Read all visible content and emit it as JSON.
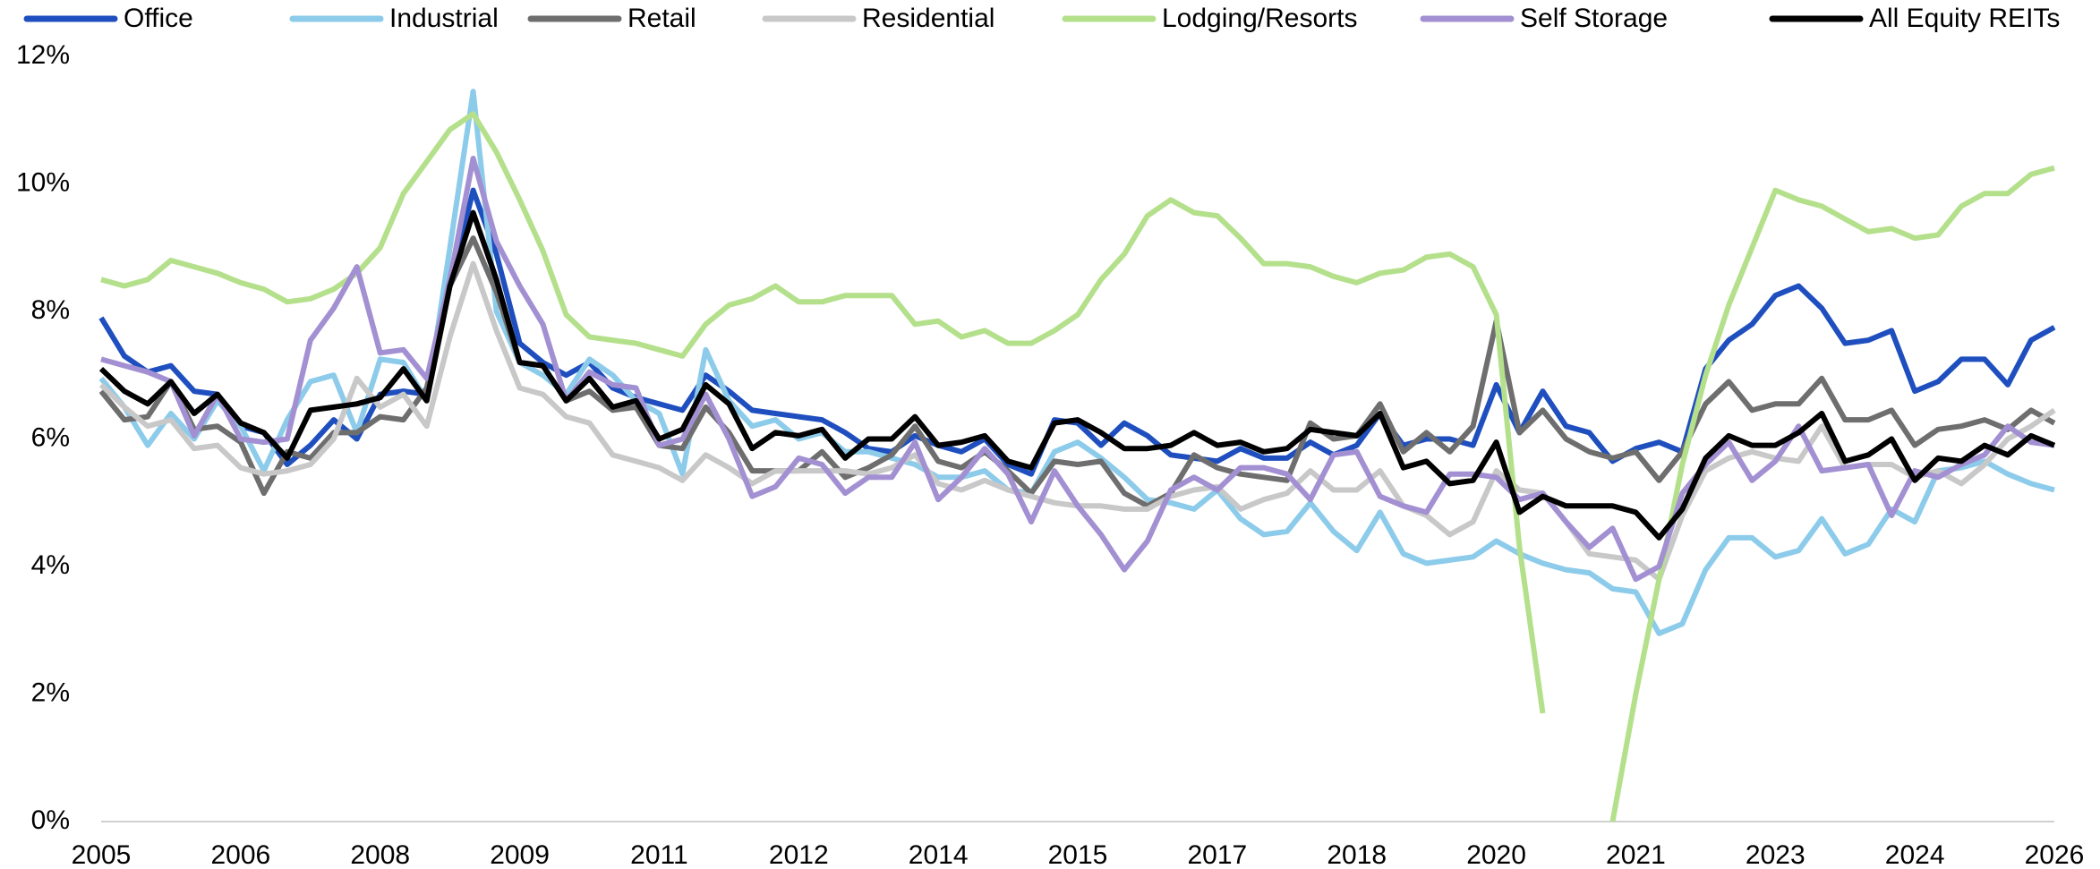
{
  "chart_data": {
    "type": "line",
    "x": [
      2005,
      2005.25,
      2005.5,
      2005.75,
      2006,
      2006.25,
      2006.5,
      2006.75,
      2007,
      2007.25,
      2007.5,
      2007.75,
      2008,
      2008.25,
      2008.5,
      2008.75,
      2009,
      2009.25,
      2009.5,
      2009.75,
      2010,
      2010.25,
      2010.5,
      2010.75,
      2011,
      2011.25,
      2011.5,
      2011.75,
      2012,
      2012.25,
      2012.5,
      2012.75,
      2013,
      2013.25,
      2013.5,
      2013.75,
      2014,
      2014.25,
      2014.5,
      2014.75,
      2015,
      2015.25,
      2015.5,
      2015.75,
      2016,
      2016.25,
      2016.5,
      2016.75,
      2017,
      2017.25,
      2017.5,
      2017.75,
      2018,
      2018.25,
      2018.5,
      2018.75,
      2019,
      2019.25,
      2019.5,
      2019.75,
      2020,
      2020.25,
      2020.5,
      2020.75,
      2021,
      2021.25,
      2021.5,
      2021.75,
      2022,
      2022.25,
      2022.5,
      2022.75,
      2023,
      2023.25,
      2023.5,
      2023.75,
      2024,
      2024.25,
      2024.5,
      2024.75,
      2025,
      2025.25,
      2025.5,
      2025.75,
      2026
    ],
    "series": [
      {
        "name": "Office",
        "color": "#1f4fbf",
        "values": [
          7.9,
          7.3,
          7.05,
          7.15,
          6.75,
          6.7,
          6.2,
          6.1,
          5.6,
          5.9,
          6.3,
          6.0,
          6.7,
          6.75,
          6.7,
          8.4,
          9.9,
          8.9,
          7.5,
          7.2,
          7.0,
          7.2,
          6.8,
          6.65,
          6.55,
          6.45,
          7.0,
          6.75,
          6.45,
          6.4,
          6.35,
          6.3,
          6.1,
          5.85,
          5.8,
          6.05,
          5.9,
          5.8,
          6.0,
          5.6,
          5.45,
          6.3,
          6.25,
          5.9,
          6.25,
          6.05,
          5.75,
          5.7,
          5.65,
          5.85,
          5.7,
          5.7,
          5.95,
          5.75,
          5.9,
          6.4,
          5.9,
          6.0,
          6.0,
          5.9,
          6.85,
          6.1,
          6.75,
          6.2,
          6.1,
          5.65,
          5.85,
          5.95,
          5.8,
          7.1,
          7.55,
          7.8,
          8.25,
          8.4,
          8.05,
          7.5,
          7.55,
          7.7,
          6.75,
          6.9,
          7.25,
          7.25,
          6.85,
          7.55,
          7.75
        ]
      },
      {
        "name": "Industrial",
        "color": "#8ccbea",
        "values": [
          6.95,
          6.5,
          5.9,
          6.4,
          6.0,
          6.6,
          6.2,
          5.5,
          6.3,
          6.9,
          7.0,
          6.1,
          7.25,
          7.2,
          6.6,
          9.0,
          11.45,
          8.0,
          7.2,
          7.0,
          6.7,
          7.25,
          7.0,
          6.6,
          6.4,
          5.45,
          7.4,
          6.6,
          6.2,
          6.3,
          6.0,
          6.1,
          5.8,
          5.8,
          5.7,
          5.6,
          5.4,
          5.4,
          5.5,
          5.2,
          5.15,
          5.8,
          5.95,
          5.7,
          5.4,
          5.05,
          5.0,
          4.9,
          5.2,
          4.75,
          4.5,
          4.55,
          5.0,
          4.55,
          4.25,
          4.85,
          4.2,
          4.05,
          4.1,
          4.15,
          4.4,
          4.2,
          4.05,
          3.95,
          3.9,
          3.65,
          3.6,
          2.95,
          3.1,
          3.95,
          4.45,
          4.45,
          4.15,
          4.25,
          4.75,
          4.2,
          4.35,
          4.9,
          4.7,
          5.5,
          5.55,
          5.65,
          5.45,
          5.3,
          5.2
        ]
      },
      {
        "name": "Retail",
        "color": "#6e6e6e",
        "values": [
          6.75,
          6.3,
          6.35,
          6.9,
          6.15,
          6.2,
          5.95,
          5.15,
          5.8,
          5.7,
          6.1,
          6.1,
          6.35,
          6.3,
          6.8,
          8.4,
          9.15,
          8.3,
          7.2,
          7.15,
          6.6,
          6.75,
          6.45,
          6.5,
          5.9,
          5.85,
          6.5,
          6.1,
          5.5,
          5.5,
          5.5,
          5.8,
          5.4,
          5.55,
          5.75,
          6.2,
          5.65,
          5.55,
          5.8,
          5.5,
          5.15,
          5.65,
          5.6,
          5.65,
          5.15,
          4.95,
          5.15,
          5.75,
          5.55,
          5.45,
          5.4,
          5.35,
          6.25,
          6.0,
          6.05,
          6.55,
          5.8,
          6.1,
          5.8,
          6.2,
          7.85,
          6.1,
          6.45,
          6.0,
          5.8,
          5.7,
          5.8,
          5.35,
          5.8,
          6.55,
          6.9,
          6.45,
          6.55,
          6.55,
          6.95,
          6.3,
          6.3,
          6.45,
          5.9,
          6.15,
          6.2,
          6.3,
          6.15,
          6.45,
          6.25
        ]
      },
      {
        "name": "Residential",
        "color": "#c8c8c8",
        "values": [
          6.85,
          6.5,
          6.2,
          6.3,
          5.85,
          5.9,
          5.55,
          5.45,
          5.5,
          5.6,
          6.0,
          6.95,
          6.5,
          6.7,
          6.2,
          7.6,
          8.75,
          7.7,
          6.8,
          6.7,
          6.35,
          6.25,
          5.75,
          5.65,
          5.55,
          5.35,
          5.75,
          5.55,
          5.3,
          5.5,
          5.5,
          5.5,
          5.5,
          5.45,
          5.55,
          5.75,
          5.3,
          5.2,
          5.35,
          5.2,
          5.1,
          5.0,
          4.95,
          4.95,
          4.9,
          4.9,
          5.1,
          5.2,
          5.25,
          4.9,
          5.05,
          5.15,
          5.5,
          5.2,
          5.2,
          5.5,
          4.95,
          4.8,
          4.5,
          4.7,
          5.5,
          5.2,
          5.15,
          4.7,
          4.2,
          4.15,
          4.1,
          3.8,
          4.8,
          5.5,
          5.7,
          5.8,
          5.7,
          5.65,
          6.2,
          5.55,
          5.6,
          5.6,
          5.4,
          5.5,
          5.3,
          5.6,
          6.0,
          6.2,
          6.45
        ]
      },
      {
        "name": "Lodging/Resorts",
        "color": "#b4e08c",
        "values": [
          8.5,
          8.4,
          8.5,
          8.8,
          8.7,
          8.6,
          8.45,
          8.35,
          8.15,
          8.2,
          8.35,
          8.6,
          9.0,
          9.85,
          10.35,
          10.85,
          11.1,
          10.5,
          9.75,
          8.95,
          7.95,
          7.6,
          7.55,
          7.5,
          7.4,
          7.3,
          7.8,
          8.1,
          8.2,
          8.4,
          8.15,
          8.15,
          8.25,
          8.25,
          8.25,
          7.8,
          7.85,
          7.6,
          7.7,
          7.5,
          7.5,
          7.7,
          7.95,
          8.5,
          8.9,
          9.5,
          9.75,
          9.55,
          9.5,
          9.15,
          8.75,
          8.75,
          8.7,
          8.55,
          8.45,
          8.6,
          8.65,
          8.85,
          8.9,
          8.7,
          7.95,
          4.3,
          1.7,
          null,
          null,
          0,
          2.0,
          3.8,
          5.6,
          7.0,
          8.1,
          9.0,
          9.9,
          9.75,
          9.65,
          9.45,
          9.25,
          9.3,
          9.15,
          9.2,
          9.65,
          9.85,
          9.85,
          10.15,
          10.25
        ]
      },
      {
        "name": "Self Storage",
        "color": "#a290d2",
        "values": [
          7.25,
          7.15,
          7.05,
          6.9,
          6.05,
          6.7,
          6.0,
          5.95,
          6.0,
          7.55,
          8.05,
          8.7,
          7.35,
          7.4,
          6.95,
          8.5,
          10.4,
          9.1,
          8.4,
          7.8,
          6.6,
          7.05,
          6.85,
          6.8,
          5.9,
          6.0,
          6.7,
          6.0,
          5.1,
          5.25,
          5.7,
          5.6,
          5.15,
          5.4,
          5.4,
          5.95,
          5.05,
          5.4,
          5.85,
          5.45,
          4.7,
          5.5,
          4.95,
          4.5,
          3.95,
          4.4,
          5.2,
          5.4,
          5.2,
          5.55,
          5.55,
          5.45,
          5.05,
          5.75,
          5.8,
          5.1,
          4.95,
          4.85,
          5.45,
          5.45,
          5.4,
          5.05,
          5.15,
          4.7,
          4.3,
          4.6,
          3.8,
          4.0,
          5.15,
          5.6,
          5.95,
          5.35,
          5.65,
          6.2,
          5.5,
          5.55,
          5.6,
          4.8,
          5.5,
          5.4,
          5.6,
          5.75,
          6.2,
          5.95,
          5.9
        ]
      },
      {
        "name": "All Equity REITs",
        "color": "#000000",
        "values": [
          7.1,
          6.75,
          6.55,
          6.9,
          6.4,
          6.7,
          6.25,
          6.1,
          5.7,
          6.45,
          6.5,
          6.55,
          6.65,
          7.1,
          6.6,
          8.4,
          9.55,
          8.5,
          7.2,
          7.15,
          6.6,
          6.95,
          6.5,
          6.6,
          6.0,
          6.15,
          6.85,
          6.55,
          5.85,
          6.1,
          6.05,
          6.15,
          5.7,
          6.0,
          6.0,
          6.35,
          5.9,
          5.95,
          6.05,
          5.65,
          5.55,
          6.25,
          6.3,
          6.1,
          5.85,
          5.85,
          5.9,
          6.1,
          5.9,
          5.95,
          5.8,
          5.85,
          6.15,
          6.1,
          6.05,
          6.4,
          5.55,
          5.65,
          5.3,
          5.35,
          5.95,
          4.85,
          5.1,
          4.95,
          4.95,
          4.95,
          4.85,
          4.45,
          4.9,
          5.7,
          6.05,
          5.9,
          5.9,
          6.1,
          6.4,
          5.65,
          5.75,
          6.0,
          5.35,
          5.7,
          5.65,
          5.9,
          5.75,
          6.05,
          5.9
        ]
      }
    ],
    "xlim": [
      2005,
      2026
    ],
    "xticks": [
      2005,
      {
        "value": 2006.5,
        "label": "2006"
      },
      2008,
      {
        "value": 2009.5,
        "label": "2009"
      },
      2011,
      {
        "value": 2012.5,
        "label": "2012"
      },
      2014,
      {
        "value": 2015.5,
        "label": "2015"
      },
      2017,
      {
        "value": 2018.5,
        "label": "2018"
      },
      2020,
      {
        "value": 2021.5,
        "label": "2021"
      },
      2023,
      {
        "value": 2024.5,
        "label": "2024"
      },
      2026
    ],
    "ylim": [
      0,
      12
    ],
    "yticks": [
      {
        "value": 0,
        "label": "0%"
      },
      {
        "value": 2,
        "label": "2%"
      },
      {
        "value": 4,
        "label": "4%"
      },
      {
        "value": 6,
        "label": "6%"
      },
      {
        "value": 8,
        "label": "8%"
      },
      {
        "value": 10,
        "label": "10%"
      },
      {
        "value": 12,
        "label": "12%"
      }
    ],
    "grid": false,
    "legend": "top"
  }
}
